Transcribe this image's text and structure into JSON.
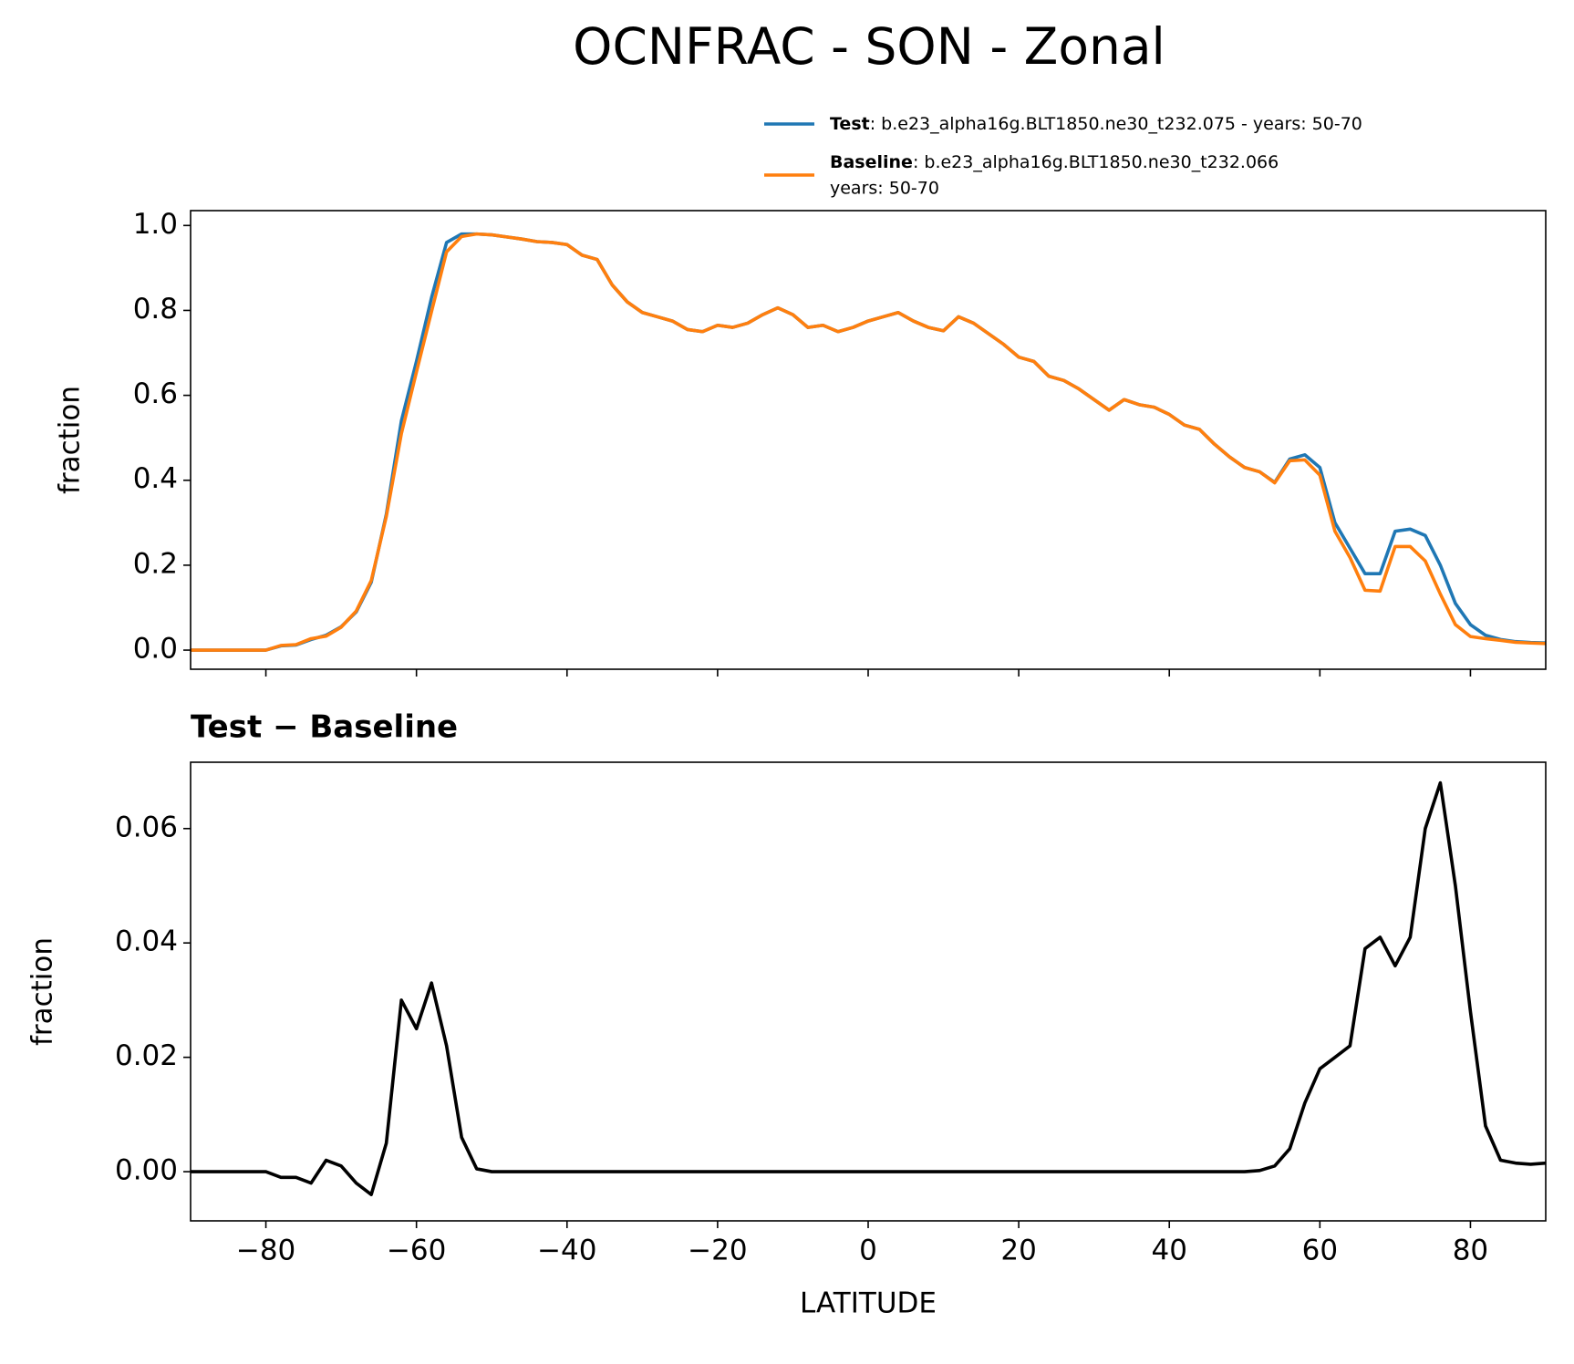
{
  "chart_data": [
    {
      "type": "line",
      "title": "OCNFRAC - SON - Zonal",
      "ylabel": "fraction",
      "x": [
        -90,
        -88,
        -86,
        -84,
        -82,
        -80,
        -78,
        -76,
        -74,
        -72,
        -70,
        -68,
        -66,
        -64,
        -62,
        -60,
        -58,
        -56,
        -54,
        -52,
        -50,
        -48,
        -46,
        -44,
        -42,
        -40,
        -38,
        -36,
        -34,
        -32,
        -30,
        -28,
        -26,
        -24,
        -22,
        -20,
        -18,
        -16,
        -14,
        -12,
        -10,
        -8,
        -6,
        -4,
        -2,
        0,
        2,
        4,
        6,
        8,
        10,
        12,
        14,
        16,
        18,
        20,
        22,
        24,
        26,
        28,
        30,
        32,
        34,
        36,
        38,
        40,
        42,
        44,
        46,
        48,
        50,
        52,
        54,
        56,
        58,
        60,
        62,
        64,
        66,
        68,
        70,
        72,
        74,
        76,
        78,
        80,
        82,
        84,
        86,
        88,
        90
      ],
      "xlim": [
        -90,
        90
      ],
      "xticks": [
        -80,
        -60,
        -40,
        -20,
        0,
        20,
        40,
        60,
        80
      ],
      "ylim": [
        -0.045,
        1.035
      ],
      "yticks": [
        {
          "value": 0,
          "label": "0.0"
        },
        0.2,
        0.4,
        0.6,
        0.8,
        {
          "value": 1,
          "label": "1.0"
        }
      ],
      "series": [
        {
          "name": "Test",
          "description": [
            ": b.e23_alpha16g.BLT1850.ne30_t232.075 - years: 50-70"
          ],
          "color": "#1f77b4",
          "values": [
            0,
            0,
            0,
            0,
            0,
            0,
            0.01,
            0.012,
            0.025,
            0.035,
            0.055,
            0.09,
            0.16,
            0.32,
            0.54,
            0.68,
            0.83,
            0.96,
            0.98,
            0.98,
            0.978,
            0.973,
            0.968,
            0.962,
            0.96,
            0.955,
            0.93,
            0.92,
            0.86,
            0.82,
            0.795,
            0.785,
            0.775,
            0.755,
            0.75,
            0.765,
            0.76,
            0.77,
            0.79,
            0.806,
            0.79,
            0.76,
            0.765,
            0.75,
            0.76,
            0.775,
            0.785,
            0.795,
            0.775,
            0.76,
            0.752,
            0.785,
            0.77,
            0.745,
            0.72,
            0.69,
            0.68,
            0.645,
            0.635,
            0.615,
            0.59,
            0.565,
            0.59,
            0.578,
            0.572,
            0.555,
            0.53,
            0.52,
            0.485,
            0.455,
            0.43,
            0.42,
            0.395,
            0.45,
            0.46,
            0.43,
            0.3,
            0.24,
            0.18,
            0.18,
            0.28,
            0.285,
            0.27,
            0.2,
            0.11,
            0.06,
            0.035,
            0.025,
            0.02,
            0.018,
            0.017
          ]
        },
        {
          "name": "Baseline",
          "description": [
            ": b.e23_alpha16g.BLT1850.ne30_t232.066",
            "years: 50-70"
          ],
          "color": "#ff7f0e",
          "values": [
            0,
            0,
            0,
            0,
            0,
            0,
            0.011,
            0.013,
            0.027,
            0.033,
            0.054,
            0.092,
            0.164,
            0.315,
            0.51,
            0.655,
            0.797,
            0.938,
            0.974,
            0.98,
            0.978,
            0.973,
            0.968,
            0.962,
            0.96,
            0.955,
            0.93,
            0.92,
            0.86,
            0.82,
            0.795,
            0.785,
            0.775,
            0.755,
            0.75,
            0.765,
            0.76,
            0.77,
            0.79,
            0.806,
            0.79,
            0.76,
            0.765,
            0.75,
            0.76,
            0.775,
            0.785,
            0.795,
            0.775,
            0.76,
            0.752,
            0.785,
            0.77,
            0.745,
            0.72,
            0.69,
            0.68,
            0.645,
            0.635,
            0.615,
            0.59,
            0.565,
            0.59,
            0.578,
            0.572,
            0.555,
            0.53,
            0.52,
            0.485,
            0.455,
            0.43,
            0.42,
            0.394,
            0.446,
            0.448,
            0.412,
            0.28,
            0.218,
            0.141,
            0.139,
            0.244,
            0.244,
            0.21,
            0.132,
            0.06,
            0.032,
            0.027,
            0.023,
            0.0185,
            0.0167,
            0.0155
          ]
        }
      ]
    },
    {
      "type": "line",
      "title": "Test − Baseline",
      "ylabel": "fraction",
      "xlabel": "LATITUDE",
      "x": [
        -90,
        -88,
        -86,
        -84,
        -82,
        -80,
        -78,
        -76,
        -74,
        -72,
        -70,
        -68,
        -66,
        -64,
        -62,
        -60,
        -58,
        -56,
        -54,
        -52,
        -50,
        -48,
        -46,
        -44,
        -42,
        -40,
        -38,
        -36,
        -34,
        -32,
        -30,
        -28,
        -26,
        -24,
        -22,
        -20,
        -18,
        -16,
        -14,
        -12,
        -10,
        -8,
        -6,
        -4,
        -2,
        0,
        2,
        4,
        6,
        8,
        10,
        12,
        14,
        16,
        18,
        20,
        22,
        24,
        26,
        28,
        30,
        32,
        34,
        36,
        38,
        40,
        42,
        44,
        46,
        48,
        50,
        52,
        54,
        56,
        58,
        60,
        62,
        64,
        66,
        68,
        70,
        72,
        74,
        76,
        78,
        80,
        82,
        84,
        86,
        88,
        90
      ],
      "xlim": [
        -90,
        90
      ],
      "xticks": [
        {
          "value": -80,
          "label": "−80"
        },
        {
          "value": -60,
          "label": "−60"
        },
        {
          "value": -40,
          "label": "−40"
        },
        {
          "value": -20,
          "label": "−20"
        },
        0,
        20,
        40,
        60,
        80
      ],
      "ylim": [
        -0.0086,
        0.0716
      ],
      "yticks": [
        {
          "value": 0,
          "label": "0.00"
        },
        {
          "value": 0.02,
          "label": "0.02"
        },
        {
          "value": 0.04,
          "label": "0.04"
        },
        {
          "value": 0.06,
          "label": "0.06"
        }
      ],
      "series": [
        {
          "color": "#000000",
          "values": [
            0,
            0,
            0,
            0,
            0,
            0,
            -0.001,
            -0.001,
            -0.002,
            0.002,
            0.001,
            -0.002,
            -0.004,
            0.005,
            0.03,
            0.025,
            0.033,
            0.022,
            0.006,
            0.0005,
            0,
            0,
            0,
            0,
            0,
            0,
            0,
            0,
            0,
            0,
            0,
            0,
            0,
            0,
            0,
            0,
            0,
            0,
            0,
            0,
            0,
            0,
            0,
            0,
            0,
            0,
            0,
            0,
            0,
            0,
            0,
            0,
            0,
            0,
            0,
            0,
            0,
            0,
            0,
            0,
            0,
            0,
            0,
            0,
            0,
            0,
            0,
            0,
            0,
            0,
            0,
            0.0002,
            0.001,
            0.004,
            0.012,
            0.018,
            0.02,
            0.022,
            0.039,
            0.041,
            0.036,
            0.041,
            0.06,
            0.068,
            0.05,
            0.028,
            0.008,
            0.002,
            0.0015,
            0.0013,
            0.0015
          ]
        }
      ]
    }
  ]
}
